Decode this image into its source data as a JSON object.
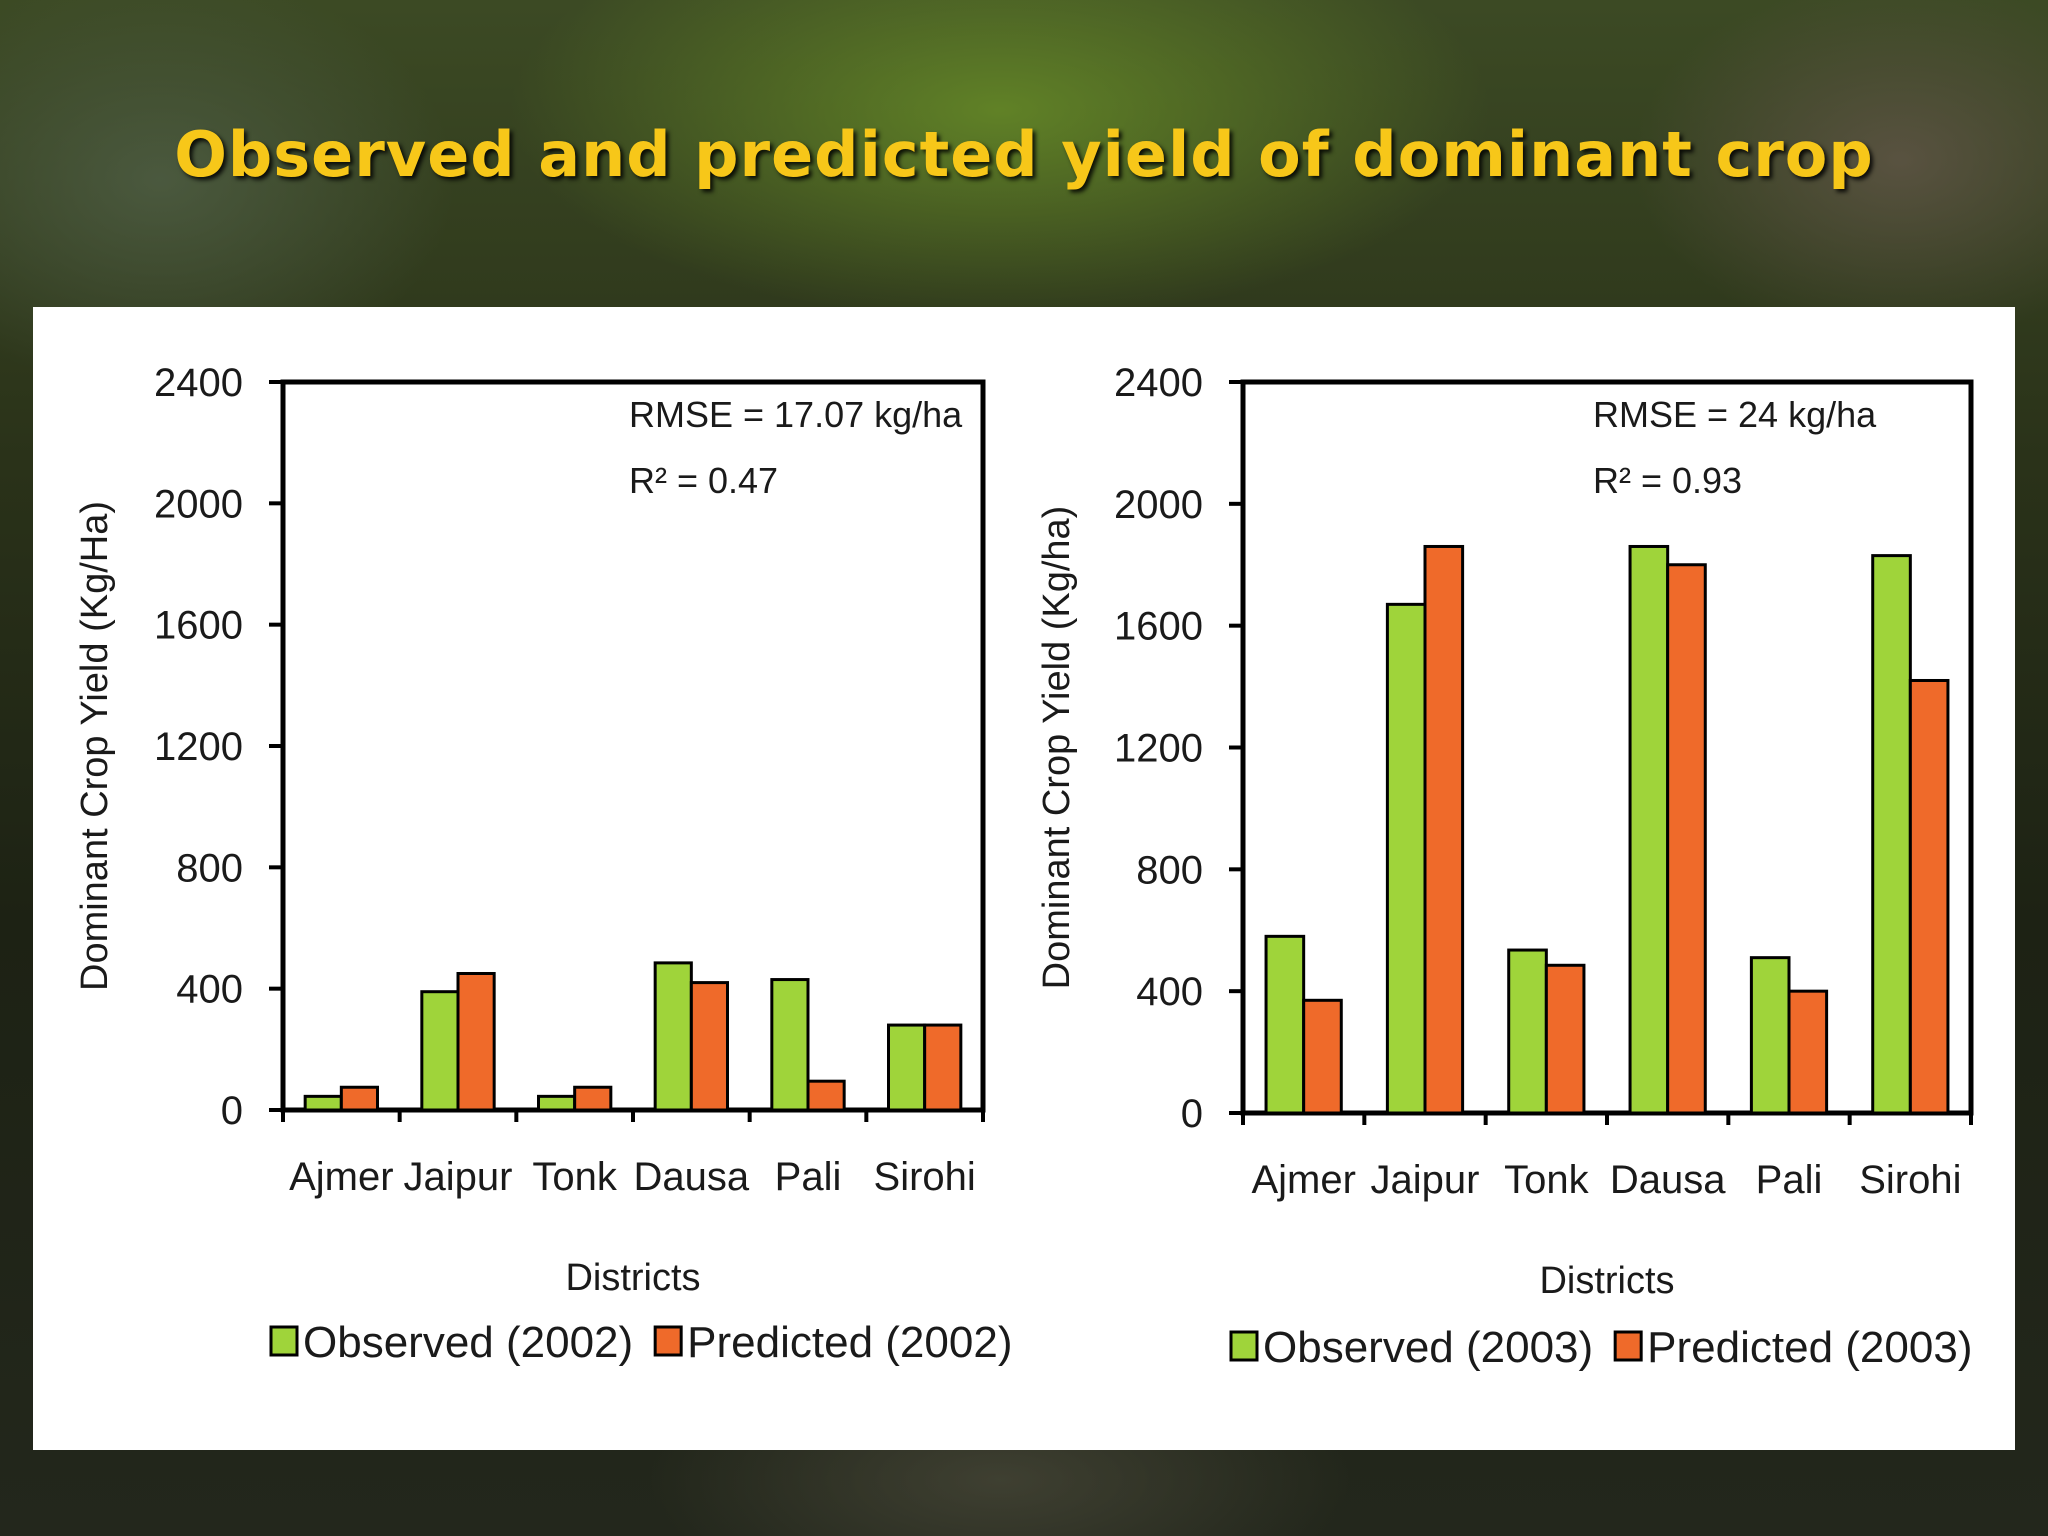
{
  "slide": {
    "title": "Observed and predicted yield of dominant crop"
  },
  "colors": {
    "observed": "#9fd43a",
    "predicted": "#ef6a2a",
    "title": "#f7c719"
  },
  "chart_data": [
    {
      "type": "bar",
      "categories": [
        "Ajmer",
        "Jaipur",
        "Tonk",
        "Dausa",
        "Pali",
        "Sirohi"
      ],
      "series": [
        {
          "name": "Observed (2002)",
          "values": [
            45,
            390,
            45,
            485,
            430,
            280
          ]
        },
        {
          "name": "Predicted (2002)",
          "values": [
            75,
            450,
            75,
            420,
            95,
            280
          ]
        }
      ],
      "xlabel": "Districts",
      "ylabel": "Dominant Crop Yield (Kg/Ha)",
      "ylim": [
        0,
        2400
      ],
      "yticks": [
        "0",
        "400",
        "800",
        "1200",
        "1600",
        "2000",
        "2400"
      ],
      "annotations": [
        "RMSE = 17.07 kg/ha",
        "R² = 0.47"
      ],
      "legend": "bottom",
      "grid": false
    },
    {
      "type": "bar",
      "categories": [
        "Ajmer",
        "Jaipur",
        "Tonk",
        "Dausa",
        "Pali",
        "Sirohi"
      ],
      "series": [
        {
          "name": "Observed (2003)",
          "values": [
            580,
            1670,
            535,
            1860,
            510,
            1830
          ]
        },
        {
          "name": "Predicted (2003)",
          "values": [
            370,
            1860,
            485,
            1800,
            400,
            1420
          ]
        }
      ],
      "xlabel": "Districts",
      "ylabel": "Dominant Crop Yield (Kg/ha)",
      "ylim": [
        0,
        2400
      ],
      "yticks": [
        "0",
        "400",
        "800",
        "1200",
        "1600",
        "2000",
        "2400"
      ],
      "annotations": [
        "RMSE = 24 kg/ha",
        "R² = 0.93"
      ],
      "legend": "bottom",
      "grid": false
    }
  ]
}
